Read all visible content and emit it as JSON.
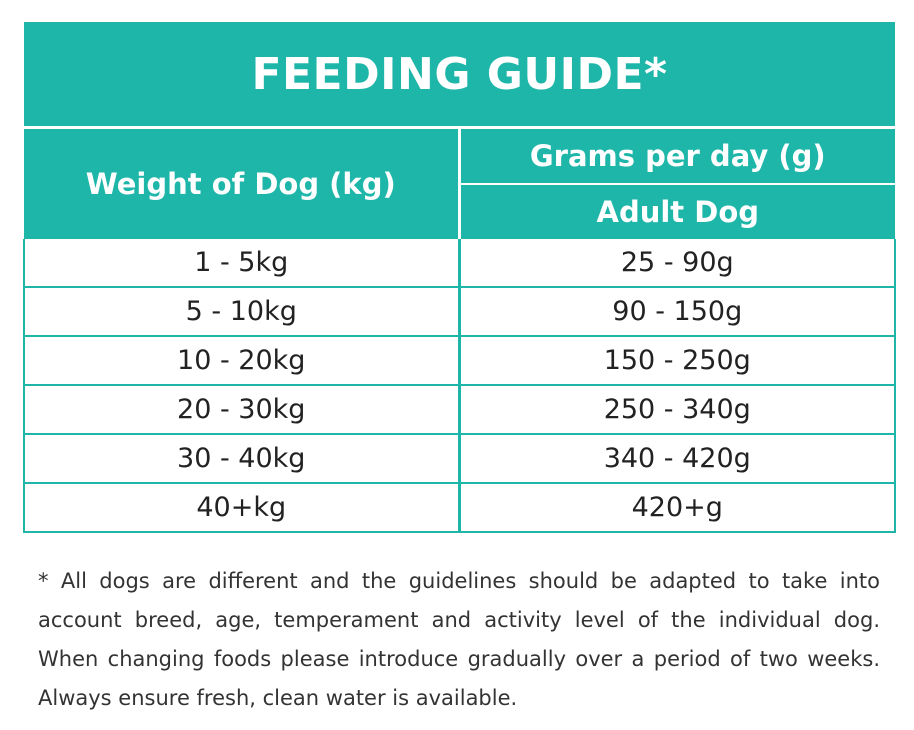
{
  "title": "FEEDING GUIDE*",
  "headers": {
    "weight": "Weight of Dog (kg)",
    "grams": "Grams per day (g)",
    "adult": "Adult Dog"
  },
  "rows": [
    {
      "weight": "1 - 5kg",
      "grams": "25 - 90g"
    },
    {
      "weight": "5 - 10kg",
      "grams": "90 - 150g"
    },
    {
      "weight": "10 - 20kg",
      "grams": "150 - 250g"
    },
    {
      "weight": "20 - 30kg",
      "grams": "250 - 340g"
    },
    {
      "weight": "30 - 40kg",
      "grams": "340 - 420g"
    },
    {
      "weight": "40+kg",
      "grams": "420+g"
    }
  ],
  "footnote": "* All dogs are different and the guidelines should be adapted to take into account breed, age, temperament and activity level of the individual dog. When changing foods please introduce gradually over a period of two weeks. Always ensure fresh, clean water is available.",
  "colors": {
    "accent": "#1db6a9",
    "text": "#222222"
  }
}
